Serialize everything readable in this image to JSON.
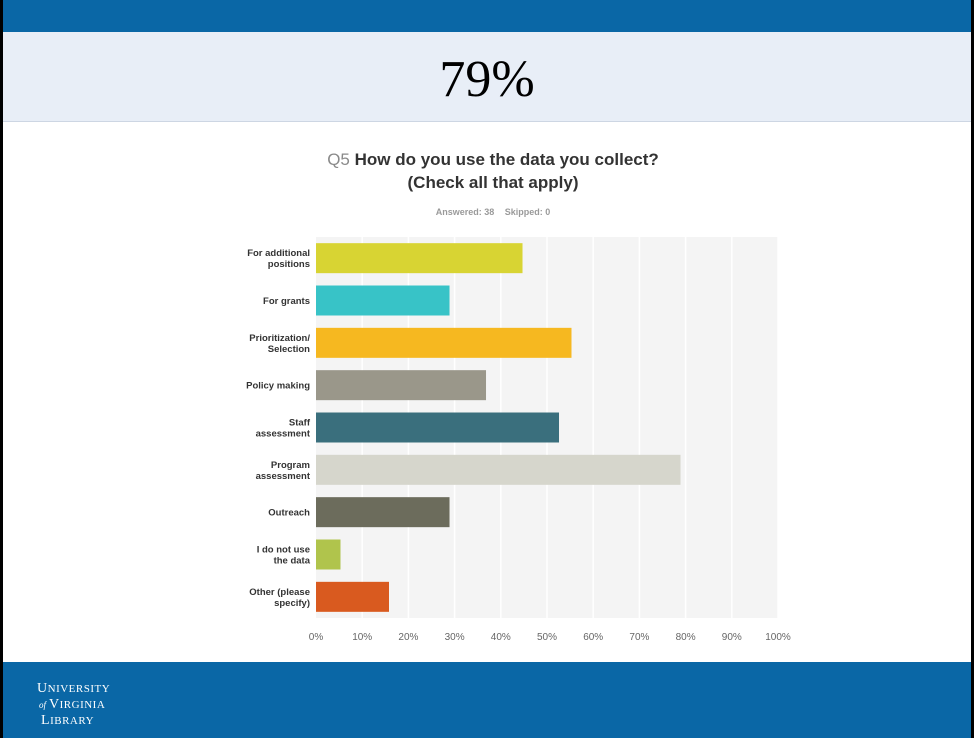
{
  "slide": {
    "headline": "79%",
    "question_number": "Q5",
    "question_text_line1": "How do you use the data you collect?",
    "question_text_line2": "(Check all that apply)",
    "answered": "Answered: 38",
    "skipped": "Skipped: 0",
    "logo_text": [
      "UNIVERSITY",
      "of",
      "VIRGINIA",
      "LIBRARY"
    ],
    "brand_color": "#0a67a6"
  },
  "chart_data": {
    "type": "bar",
    "orientation": "horizontal",
    "title": "Q5 How do you use the data you collect? (Check all that apply)",
    "categories": [
      [
        "For additional",
        "positions"
      ],
      [
        "For grants"
      ],
      [
        "Prioritization/",
        "Selection"
      ],
      [
        "Policy making"
      ],
      [
        "Staff",
        "assessment"
      ],
      [
        "Program",
        "assessment"
      ],
      [
        "Outreach"
      ],
      [
        "I do not use",
        "the data"
      ],
      [
        "Other (please",
        "specify)"
      ]
    ],
    "values": [
      44.7,
      28.9,
      55.3,
      36.8,
      52.6,
      78.9,
      28.9,
      5.3,
      15.8
    ],
    "colors": [
      "#d8d433",
      "#38c3c7",
      "#f6b820",
      "#9a978a",
      "#3a6f7d",
      "#d6d6cc",
      "#6c6c5c",
      "#b0c44c",
      "#d95a1f"
    ],
    "x_ticks": [
      "0%",
      "10%",
      "20%",
      "30%",
      "40%",
      "50%",
      "60%",
      "70%",
      "80%",
      "90%",
      "100%"
    ],
    "xlim": [
      0,
      100
    ],
    "grid": true,
    "legend": "none"
  }
}
